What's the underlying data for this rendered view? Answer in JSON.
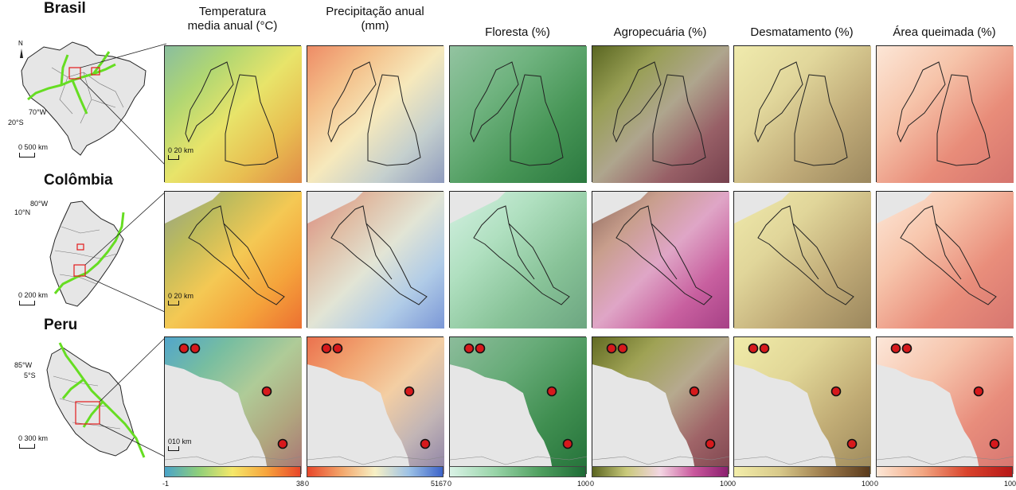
{
  "columns": [
    {
      "header": "Temperatura\nmedia anual (°C)",
      "min": "-1",
      "max": "38",
      "gradient": [
        "#4aa3c9",
        "#8fcf7a",
        "#f5e86a",
        "#f7a43d",
        "#e8472a"
      ]
    },
    {
      "header": "Precipitação anual\n(mm)",
      "min": "0",
      "max": "5167",
      "gradient": [
        "#e8472a",
        "#f3a56a",
        "#f7f0c5",
        "#9dc2e6",
        "#3c63c9"
      ]
    },
    {
      "header": "Floresta (%)",
      "min": "0",
      "max": "100",
      "gradient": [
        "#d9f2e6",
        "#98d4a8",
        "#4f9f5f",
        "#1d6b35"
      ]
    },
    {
      "header": "Agropecuária (%)",
      "min": "0",
      "max": "100",
      "gradient": [
        "#5a6420",
        "#c9c97a",
        "#f3d6e3",
        "#c9579c",
        "#8c1f6f"
      ]
    },
    {
      "header": "Desmatamento (%)",
      "min": "0",
      "max": "100",
      "gradient": [
        "#f3eeaa",
        "#d8c98a",
        "#9c7a4b",
        "#5a3a1c"
      ]
    },
    {
      "header": "Área queimada (%)",
      "min": "0",
      "max": "100",
      "gradient": [
        "#fde7d6",
        "#f2a884",
        "#d9432c",
        "#b71818"
      ]
    }
  ],
  "rows": [
    {
      "country": "Brasil",
      "coord_lon": "70°W",
      "coord_lat": "20°S",
      "inset_scale": "0 500 km",
      "panel_scale": "0 20 km",
      "has_points": false
    },
    {
      "country": "Colômbia",
      "coord_lon": "80°W",
      "coord_lat": "10°N",
      "inset_scale": "0 200 km",
      "panel_scale": "0 20 km",
      "has_points": false
    },
    {
      "country": "Peru",
      "coord_lon": "85°W",
      "coord_lat": "5°S",
      "inset_scale": "0 300 km",
      "panel_scale": "010 km",
      "has_points": true
    }
  ],
  "colors": {
    "river": "#66dd22",
    "highlight_box": "#e31a1c",
    "point_fill": "#d7191c",
    "outline": "#222222"
  },
  "panel_fills": [
    [
      "#d7df6a",
      "#f5e0b0",
      "#3d8a4c",
      "#5b6a25",
      "#ece7b0",
      "#fbe6d8"
    ],
    [
      "#f2a239",
      "#c8d7e8",
      "#cdeedd",
      "#c76aa3",
      "#ebe5ad",
      "#fde9dc"
    ],
    [
      "#5aa8cf",
      "#efa57a",
      "#2d7a3f",
      "#6c7327",
      "#ede8a8",
      "#fbe7dd"
    ]
  ]
}
